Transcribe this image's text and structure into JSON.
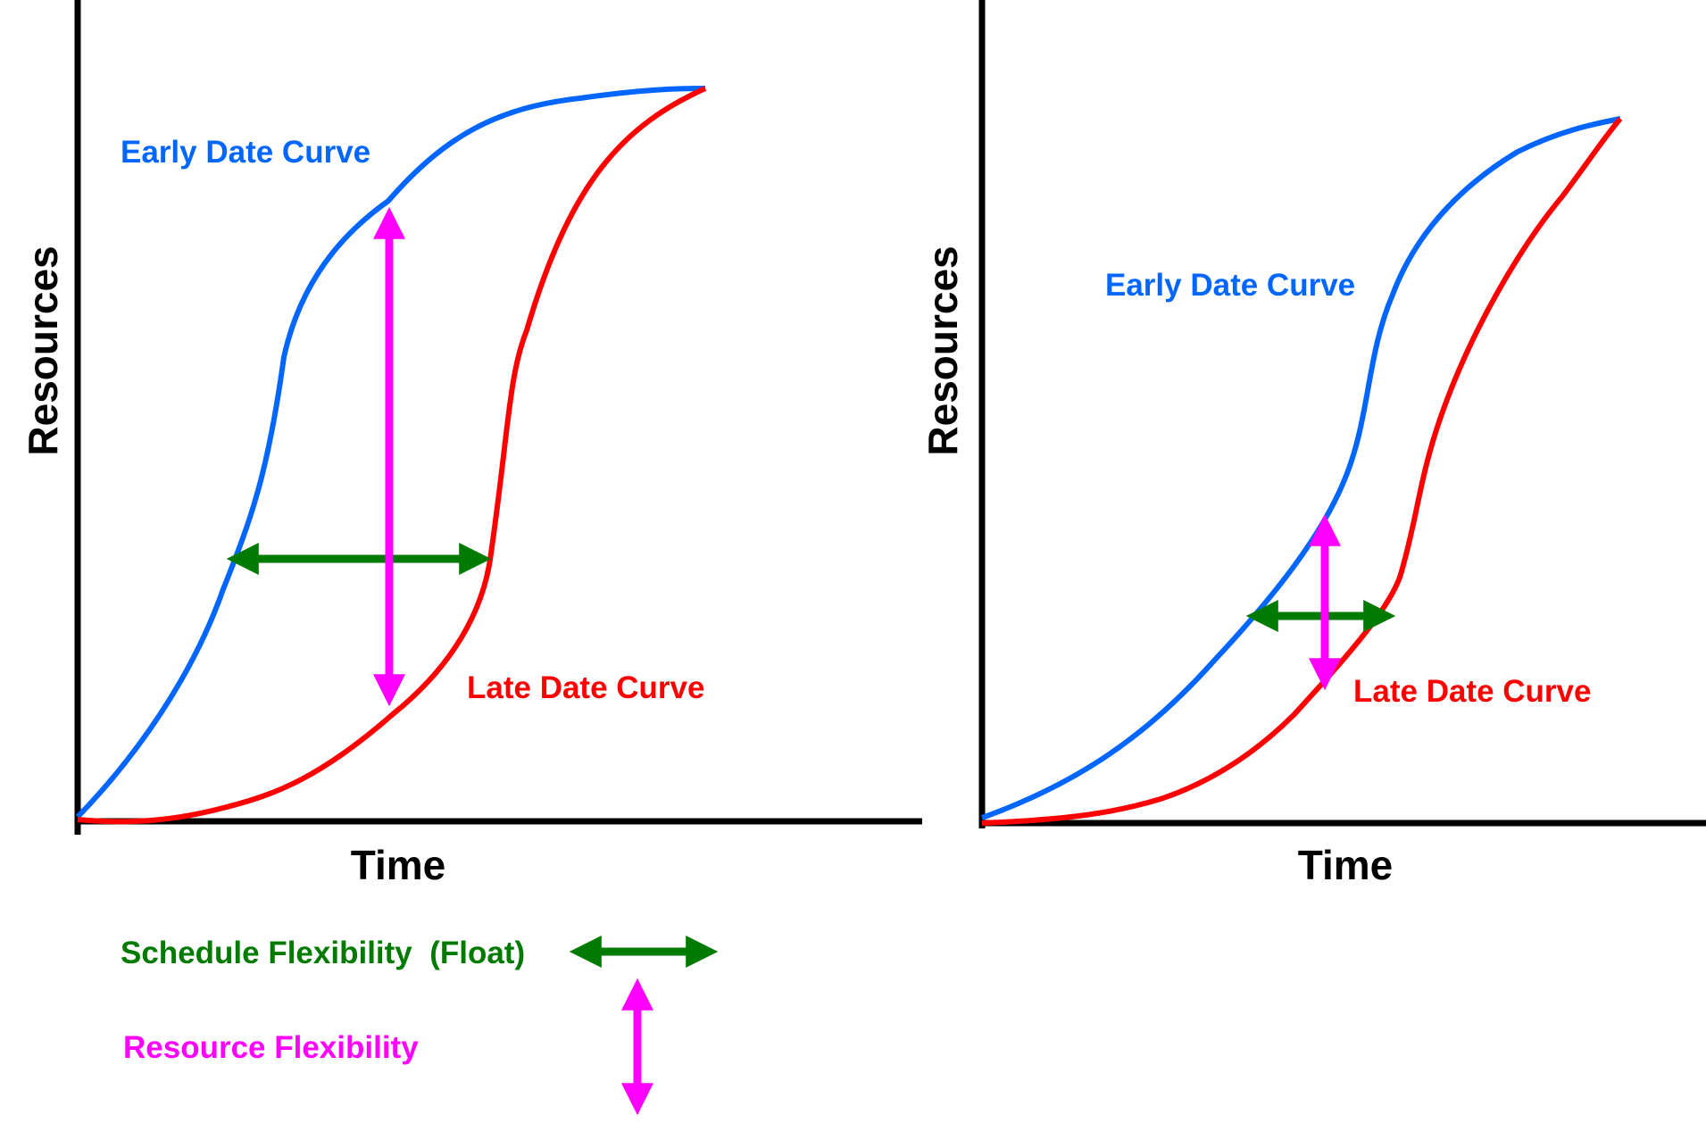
{
  "colors": {
    "axis": "#000000",
    "early_curve": "#0066ff",
    "late_curve": "#ff0000",
    "schedule_flexibility": "#007a00",
    "resource_flexibility": "#ff00ff"
  },
  "panels": [
    {
      "y_axis_title": "Resources",
      "x_axis_title": "Time",
      "early_curve_label": "Early Date Curve",
      "late_curve_label": "Late Date Curve"
    },
    {
      "y_axis_title": "Resources",
      "x_axis_title": "Time",
      "early_curve_label": "Early Date Curve",
      "late_curve_label": "Late Date Curve"
    }
  ],
  "legend": {
    "schedule_flexibility": "Schedule Flexibility  (Float)",
    "resource_flexibility": "Resource Flexibility"
  },
  "icons": {
    "horizontal_double_arrow": "double-arrow-horizontal",
    "vertical_double_arrow": "double-arrow-vertical"
  }
}
